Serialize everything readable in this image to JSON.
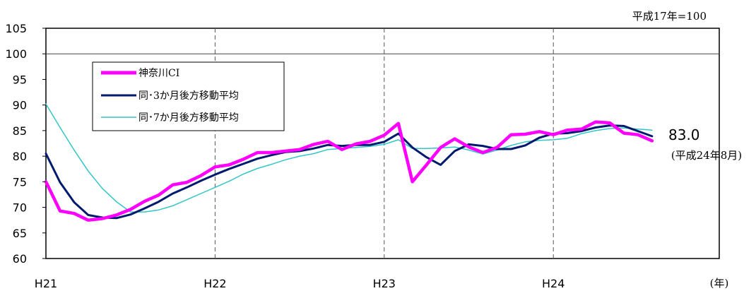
{
  "chart_data": {
    "type": "line",
    "base_note": "平成17年=100",
    "x_tick_labels": [
      "H21",
      "H22",
      "H23",
      "H24"
    ],
    "x_unit": "(年)",
    "ylim": [
      60,
      105
    ],
    "y_ticks": [
      60,
      65,
      70,
      75,
      80,
      85,
      90,
      95,
      100,
      105
    ],
    "reference_line": 100,
    "legend_position": "top-left",
    "grid": "vertical dashed lines at year boundaries",
    "series": [
      {
        "name": "神奈川CI",
        "color": "#ff00ff",
        "values": [
          75.0,
          69.3,
          68.8,
          67.5,
          67.8,
          68.5,
          69.6,
          71.2,
          72.4,
          74.4,
          74.9,
          76.2,
          77.9,
          78.3,
          79.4,
          80.7,
          80.7,
          81.0,
          81.3,
          82.3,
          82.9,
          81.3,
          82.4,
          82.9,
          84.1,
          86.4,
          75.0,
          78.3,
          81.7,
          83.4,
          81.8,
          80.7,
          81.7,
          84.2,
          84.3,
          84.8,
          84.2,
          85.1,
          85.3,
          86.7,
          86.5,
          84.5,
          84.2,
          83.0
        ]
      },
      {
        "name": "同･3か月後方移動平均",
        "color": "#001a6e",
        "values": [
          80.5,
          74.9,
          71.0,
          68.5,
          68.0,
          67.9,
          68.6,
          69.8,
          71.1,
          72.7,
          73.9,
          75.2,
          76.4,
          77.5,
          78.5,
          79.5,
          80.2,
          80.8,
          81.0,
          81.5,
          82.2,
          82.0,
          82.2,
          82.2,
          82.8,
          84.4,
          81.7,
          79.8,
          78.3,
          81.0,
          82.3,
          82.0,
          81.4,
          81.4,
          82.1,
          83.6,
          84.4,
          84.5,
          84.9,
          85.6,
          86.0,
          85.9,
          84.9,
          83.9
        ]
      },
      {
        "name": "同･7か月後方移動平均",
        "color": "#33c6c6",
        "values": [
          90.2,
          85.6,
          81.2,
          77.1,
          73.7,
          71.1,
          69.1,
          69.1,
          69.5,
          70.3,
          71.5,
          72.7,
          73.9,
          75.1,
          76.5,
          77.6,
          78.4,
          79.3,
          80.0,
          80.5,
          81.3,
          81.5,
          81.7,
          81.9,
          82.3,
          83.2,
          81.5,
          81.5,
          81.6,
          81.8,
          81.2,
          80.4,
          81.2,
          82.1,
          82.8,
          83.1,
          83.2,
          83.5,
          84.4,
          85.0,
          85.4,
          85.5,
          85.3,
          85.1
        ]
      }
    ],
    "annotation": {
      "value": "83.0",
      "period": "(平成24年8月)"
    }
  }
}
